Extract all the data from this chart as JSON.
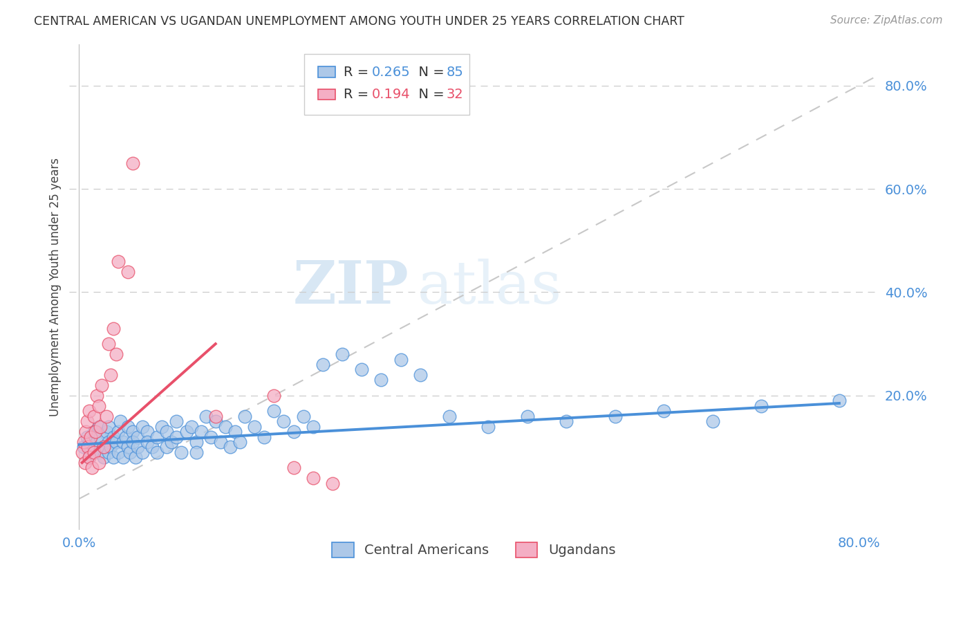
{
  "title": "CENTRAL AMERICAN VS UGANDAN UNEMPLOYMENT AMONG YOUTH UNDER 25 YEARS CORRELATION CHART",
  "source": "Source: ZipAtlas.com",
  "ylabel": "Unemployment Among Youth under 25 years",
  "xlim": [
    -0.01,
    0.82
  ],
  "ylim": [
    -0.06,
    0.88
  ],
  "xtick_positions": [
    0.0,
    0.1,
    0.2,
    0.3,
    0.4,
    0.5,
    0.6,
    0.7,
    0.8
  ],
  "xtick_labels": [
    "0.0%",
    "",
    "",
    "",
    "",
    "",
    "",
    "",
    "80.0%"
  ],
  "yticks_right": [
    0.0,
    0.2,
    0.4,
    0.6,
    0.8
  ],
  "ytick_labels_right": [
    "",
    "20.0%",
    "40.0%",
    "60.0%",
    "80.0%"
  ],
  "hgrid_lines": [
    0.2,
    0.4,
    0.6,
    0.8
  ],
  "legend_blue_R": "0.265",
  "legend_blue_N": "85",
  "legend_pink_R": "0.194",
  "legend_pink_N": "32",
  "blue_color": "#adc8e8",
  "blue_line_color": "#4a90d9",
  "pink_color": "#f4aec4",
  "pink_line_color": "#e8506a",
  "diagonal_color": "#c8c8c8",
  "watermark_zip": "ZIP",
  "watermark_atlas": "atlas",
  "blue_scatter_x": [
    0.005,
    0.008,
    0.01,
    0.01,
    0.012,
    0.015,
    0.015,
    0.018,
    0.02,
    0.02,
    0.022,
    0.025,
    0.025,
    0.028,
    0.03,
    0.03,
    0.03,
    0.032,
    0.035,
    0.035,
    0.038,
    0.04,
    0.04,
    0.042,
    0.045,
    0.045,
    0.048,
    0.05,
    0.05,
    0.052,
    0.055,
    0.055,
    0.058,
    0.06,
    0.06,
    0.065,
    0.065,
    0.07,
    0.07,
    0.075,
    0.08,
    0.08,
    0.085,
    0.09,
    0.09,
    0.095,
    0.1,
    0.1,
    0.105,
    0.11,
    0.115,
    0.12,
    0.12,
    0.125,
    0.13,
    0.135,
    0.14,
    0.145,
    0.15,
    0.155,
    0.16,
    0.165,
    0.17,
    0.18,
    0.19,
    0.2,
    0.21,
    0.22,
    0.23,
    0.24,
    0.25,
    0.27,
    0.29,
    0.31,
    0.33,
    0.35,
    0.38,
    0.42,
    0.46,
    0.5,
    0.55,
    0.6,
    0.65,
    0.7,
    0.78
  ],
  "blue_scatter_y": [
    0.1,
    0.12,
    0.08,
    0.11,
    0.09,
    0.13,
    0.1,
    0.11,
    0.14,
    0.09,
    0.12,
    0.1,
    0.08,
    0.13,
    0.11,
    0.09,
    0.14,
    0.1,
    0.12,
    0.08,
    0.11,
    0.13,
    0.09,
    0.15,
    0.11,
    0.08,
    0.12,
    0.1,
    0.14,
    0.09,
    0.13,
    0.11,
    0.08,
    0.12,
    0.1,
    0.14,
    0.09,
    0.13,
    0.11,
    0.1,
    0.12,
    0.09,
    0.14,
    0.13,
    0.1,
    0.11,
    0.15,
    0.12,
    0.09,
    0.13,
    0.14,
    0.11,
    0.09,
    0.13,
    0.16,
    0.12,
    0.15,
    0.11,
    0.14,
    0.1,
    0.13,
    0.11,
    0.16,
    0.14,
    0.12,
    0.17,
    0.15,
    0.13,
    0.16,
    0.14,
    0.26,
    0.28,
    0.25,
    0.23,
    0.27,
    0.24,
    0.16,
    0.14,
    0.16,
    0.15,
    0.16,
    0.17,
    0.15,
    0.18,
    0.19
  ],
  "pink_scatter_x": [
    0.003,
    0.005,
    0.006,
    0.007,
    0.008,
    0.009,
    0.01,
    0.01,
    0.012,
    0.013,
    0.015,
    0.015,
    0.017,
    0.018,
    0.02,
    0.02,
    0.022,
    0.023,
    0.025,
    0.028,
    0.03,
    0.032,
    0.035,
    0.038,
    0.04,
    0.05,
    0.055,
    0.14,
    0.2,
    0.22,
    0.24,
    0.26
  ],
  "pink_scatter_y": [
    0.09,
    0.11,
    0.07,
    0.13,
    0.15,
    0.1,
    0.08,
    0.17,
    0.12,
    0.06,
    0.16,
    0.09,
    0.13,
    0.2,
    0.07,
    0.18,
    0.14,
    0.22,
    0.1,
    0.16,
    0.3,
    0.24,
    0.33,
    0.28,
    0.46,
    0.44,
    0.65,
    0.16,
    0.2,
    0.06,
    0.04,
    0.03
  ]
}
